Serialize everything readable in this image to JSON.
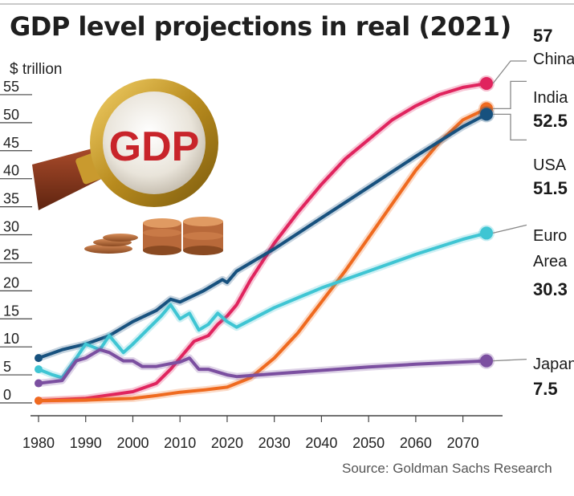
{
  "chart_data": {
    "type": "line",
    "title": "GDP level projections in real (2021)",
    "unit_label": "$ trillion",
    "source": "Source: Goldman Sachs Research",
    "xlim": [
      1980,
      2075
    ],
    "ylim": [
      0,
      59
    ],
    "x_ticks": [
      "1980",
      "1990",
      "2000",
      "2010",
      "2020",
      "2030",
      "2040",
      "2050",
      "2060",
      "2070"
    ],
    "y_ticks": [
      "0",
      "5",
      "10",
      "15",
      "20",
      "25",
      "30",
      "35",
      "40",
      "45",
      "50",
      "55"
    ],
    "grid": false,
    "inset_image_text": "GDP",
    "series": [
      {
        "name": "China",
        "end_value": "57",
        "color": "#e0245e",
        "points": [
          [
            1980,
            0.4
          ],
          [
            1990,
            0.8
          ],
          [
            2000,
            2
          ],
          [
            2005,
            3.5
          ],
          [
            2008,
            6
          ],
          [
            2010,
            8
          ],
          [
            2013,
            11
          ],
          [
            2016,
            12
          ],
          [
            2018,
            14
          ],
          [
            2020,
            15.5
          ],
          [
            2022,
            17.5
          ],
          [
            2025,
            22
          ],
          [
            2030,
            28.5
          ],
          [
            2035,
            34
          ],
          [
            2040,
            39
          ],
          [
            2045,
            43.5
          ],
          [
            2050,
            47
          ],
          [
            2055,
            50.5
          ],
          [
            2060,
            53
          ],
          [
            2065,
            55
          ],
          [
            2070,
            56.3
          ],
          [
            2075,
            57
          ]
        ]
      },
      {
        "name": "India",
        "end_value": "52.5",
        "color": "#ef6a1f",
        "points": [
          [
            1980,
            0.4
          ],
          [
            1990,
            0.5
          ],
          [
            2000,
            0.8
          ],
          [
            2005,
            1.3
          ],
          [
            2010,
            1.9
          ],
          [
            2015,
            2.3
          ],
          [
            2020,
            2.8
          ],
          [
            2025,
            4.5
          ],
          [
            2030,
            8
          ],
          [
            2035,
            12.5
          ],
          [
            2040,
            18
          ],
          [
            2045,
            23.5
          ],
          [
            2050,
            29.5
          ],
          [
            2055,
            35.5
          ],
          [
            2060,
            41.5
          ],
          [
            2065,
            46.5
          ],
          [
            2070,
            50.5
          ],
          [
            2075,
            52.5
          ]
        ]
      },
      {
        "name": "USA",
        "end_value": "51.5",
        "color": "#17517e",
        "points": [
          [
            1980,
            8
          ],
          [
            1985,
            9.5
          ],
          [
            1990,
            10.5
          ],
          [
            1995,
            12
          ],
          [
            2000,
            14.5
          ],
          [
            2005,
            16.5
          ],
          [
            2008,
            18.5
          ],
          [
            2010,
            18
          ],
          [
            2015,
            20
          ],
          [
            2019,
            22
          ],
          [
            2020,
            21.5
          ],
          [
            2022,
            23.5
          ],
          [
            2030,
            27.5
          ],
          [
            2040,
            33
          ],
          [
            2050,
            38.5
          ],
          [
            2060,
            44
          ],
          [
            2070,
            49.3
          ],
          [
            2075,
            51.5
          ]
        ]
      },
      {
        "name": "Euro Area",
        "end_value": "30.3",
        "color": "#3fc5d3",
        "points": [
          [
            1980,
            6
          ],
          [
            1983,
            5
          ],
          [
            1985,
            4.5
          ],
          [
            1988,
            8
          ],
          [
            1990,
            10.5
          ],
          [
            1993,
            9.5
          ],
          [
            1995,
            12
          ],
          [
            1998,
            9
          ],
          [
            2000,
            10.5
          ],
          [
            2003,
            13
          ],
          [
            2006,
            15.5
          ],
          [
            2008,
            17.5
          ],
          [
            2010,
            15
          ],
          [
            2012,
            16
          ],
          [
            2014,
            13
          ],
          [
            2016,
            14
          ],
          [
            2018,
            16
          ],
          [
            2020,
            14.5
          ],
          [
            2022,
            13.5
          ],
          [
            2030,
            17
          ],
          [
            2040,
            20.5
          ],
          [
            2050,
            23.5
          ],
          [
            2060,
            26.5
          ],
          [
            2070,
            29.2
          ],
          [
            2075,
            30.3
          ]
        ]
      },
      {
        "name": "Japan",
        "end_value": "7.5",
        "color": "#7b4fa0",
        "points": [
          [
            1980,
            3.5
          ],
          [
            1983,
            3.8
          ],
          [
            1985,
            4
          ],
          [
            1988,
            7.5
          ],
          [
            1990,
            8
          ],
          [
            1993,
            9.5
          ],
          [
            1995,
            9
          ],
          [
            1998,
            7.5
          ],
          [
            2000,
            7.5
          ],
          [
            2002,
            6.5
          ],
          [
            2005,
            6.5
          ],
          [
            2008,
            7
          ],
          [
            2010,
            7.3
          ],
          [
            2012,
            8
          ],
          [
            2014,
            6
          ],
          [
            2016,
            6
          ],
          [
            2018,
            5.5
          ],
          [
            2020,
            5
          ],
          [
            2022,
            4.7
          ],
          [
            2030,
            5.2
          ],
          [
            2040,
            5.8
          ],
          [
            2050,
            6.4
          ],
          [
            2060,
            6.9
          ],
          [
            2070,
            7.3
          ],
          [
            2075,
            7.5
          ]
        ]
      }
    ]
  }
}
